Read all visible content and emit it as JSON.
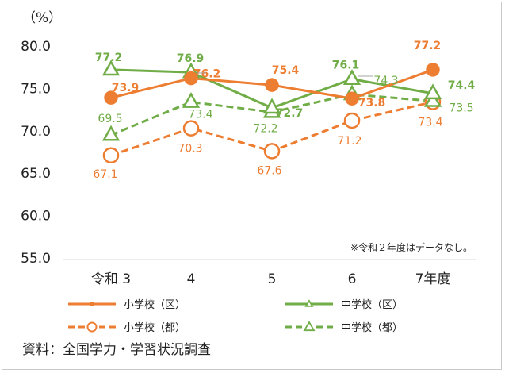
{
  "chart_data": {
    "type": "line",
    "unit_label": "（%）",
    "categories": [
      "令和 3",
      "4",
      "5",
      "6",
      "7年度"
    ],
    "y_ticks": [
      "80.0",
      "75.0",
      "70.0",
      "65.0",
      "60.0",
      "55.0"
    ],
    "ylim": [
      55,
      80
    ],
    "grid": false,
    "note": "※令和２年度はデータなし。",
    "source": "資料：全国学力・学習状況調査",
    "series": [
      {
        "name": "小学校（区）",
        "color": "#ed7d31",
        "style": "solid",
        "marker": "filled-circle",
        "values": [
          73.9,
          76.2,
          75.4,
          73.8,
          77.2
        ],
        "labels": [
          "73.9",
          "76.2",
          "75.4",
          "73.8",
          "77.2"
        ]
      },
      {
        "name": "中学校（区）",
        "color": "#70ad47",
        "style": "solid",
        "marker": "triangle",
        "values": [
          77.2,
          76.9,
          72.7,
          76.1,
          74.4
        ],
        "labels": [
          "77.2",
          "76.9",
          "72.7",
          "76.1",
          "74.4"
        ]
      },
      {
        "name": "小学校（都）",
        "color": "#ed7d31",
        "style": "dashed",
        "marker": "open-circle",
        "values": [
          67.1,
          70.3,
          67.6,
          71.2,
          73.4
        ],
        "labels": [
          "67.1",
          "70.3",
          "67.6",
          "71.2",
          "73.4"
        ]
      },
      {
        "name": "中学校（都）",
        "color": "#70ad47",
        "style": "dashed",
        "marker": "triangle",
        "values": [
          69.5,
          73.4,
          72.2,
          74.3,
          73.5
        ],
        "labels": [
          "69.5",
          "73.4",
          "72.2",
          "74.3",
          "73.5"
        ]
      }
    ]
  }
}
